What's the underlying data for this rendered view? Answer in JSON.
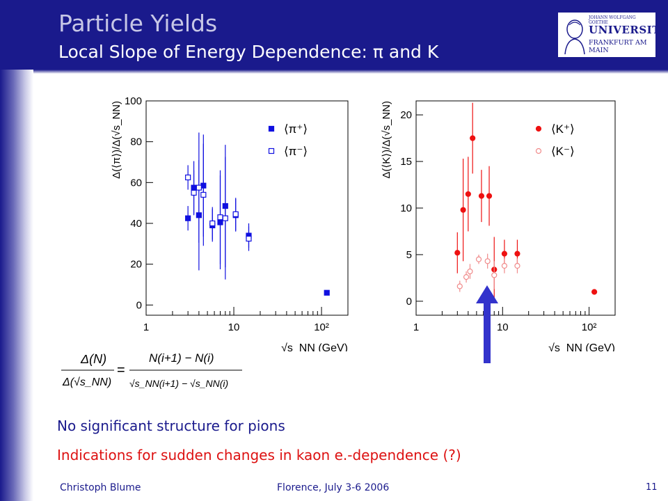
{
  "slide": {
    "title": "Particle Yields",
    "subtitle": "Local Slope of Energy Dependence: π and K",
    "logo": {
      "line1": "JOHANN WOLFGANG GOETHE",
      "line2": "UNIVERSITÄT",
      "line3": "FRANKFURT AM MAIN"
    },
    "equation": {
      "lhs_num": "Δ(N)",
      "lhs_den": "Δ(√s_NN)",
      "rhs_num": "N(i+1) − N(i)",
      "rhs_den": "√s_NN(i+1) − √s_NN(i)"
    },
    "message_pions": "No significant structure for pions",
    "message_kaons": "Indications for sudden changes in kaon e.-dependence (?)",
    "footer_left": "Christoph Blume",
    "footer_center": "Florence, July 3-6 2006",
    "footer_right": "11",
    "colors": {
      "header": "#1a1a8c",
      "pion": "#1010e0",
      "kaon": "#ee1111",
      "kaon_open": "#f08a8a",
      "arrow": "#3333cc"
    }
  },
  "chart_data": [
    {
      "type": "scatter",
      "xlabel": "√s_NN (GeV)",
      "ylabel": "Δ(⟨π⟩)/Δ(√s_NN)",
      "x_scale": "log",
      "xlim": [
        1,
        200
      ],
      "ylim": [
        -5,
        100
      ],
      "x_ticks": [
        "1",
        "10",
        "10²"
      ],
      "y_ticks": [
        "0",
        "20",
        "40",
        "60",
        "80",
        "100"
      ],
      "legend": "top-right",
      "series": [
        {
          "name": "⟨π⁺⟩",
          "marker": "filled-square",
          "points": [
            {
              "x": 3.0,
              "y": 42.5,
              "err": 6
            },
            {
              "x": 3.5,
              "y": 57.5,
              "err": 13
            },
            {
              "x": 4.0,
              "y": 44,
              "err": 27
            },
            {
              "x": 4.5,
              "y": 58.5,
              "err": 25
            },
            {
              "x": 5.7,
              "y": 39,
              "err": 8
            },
            {
              "x": 7.0,
              "y": 40.5,
              "err": 23
            },
            {
              "x": 8.0,
              "y": 48.5,
              "err": 30
            },
            {
              "x": 10.5,
              "y": 44,
              "err": 8
            },
            {
              "x": 14.8,
              "y": 34,
              "err": 6
            },
            {
              "x": 115,
              "y": 6,
              "err": 0
            }
          ]
        },
        {
          "name": "⟨π⁻⟩",
          "marker": "open-square",
          "points": [
            {
              "x": 3.0,
              "y": 62.5,
              "err": 6
            },
            {
              "x": 3.5,
              "y": 55,
              "err": 11
            },
            {
              "x": 4.0,
              "y": 57.5,
              "err": 27
            },
            {
              "x": 4.5,
              "y": 54,
              "err": 25
            },
            {
              "x": 5.7,
              "y": 40,
              "err": 8
            },
            {
              "x": 7.0,
              "y": 43,
              "err": 23
            },
            {
              "x": 8.0,
              "y": 42.5,
              "err": 30
            },
            {
              "x": 10.5,
              "y": 44.5,
              "err": 8
            },
            {
              "x": 14.8,
              "y": 32.5,
              "err": 6
            }
          ]
        }
      ]
    },
    {
      "type": "scatter",
      "xlabel": "√s_NN (GeV)",
      "ylabel": "Δ(⟨K⟩)/Δ(√s_NN)",
      "x_scale": "log",
      "xlim": [
        1,
        200
      ],
      "ylim": [
        -1.5,
        21.5
      ],
      "x_ticks": [
        "1",
        "10",
        "10²"
      ],
      "y_ticks": [
        "0",
        "5",
        "10",
        "15",
        "20"
      ],
      "legend": "top-right",
      "series": [
        {
          "name": "⟨K⁺⟩",
          "marker": "filled-circle",
          "points": [
            {
              "x": 3.0,
              "y": 5.2,
              "err": 2.2
            },
            {
              "x": 3.5,
              "y": 9.8,
              "err": 5.5
            },
            {
              "x": 4.0,
              "y": 11.5,
              "err": 4
            },
            {
              "x": 4.5,
              "y": 17.5,
              "err": 3.8
            },
            {
              "x": 5.7,
              "y": 11.3,
              "err": 2.8
            },
            {
              "x": 7.0,
              "y": 11.3,
              "err": 3.2
            },
            {
              "x": 8.0,
              "y": 3.4,
              "err": 3.5
            },
            {
              "x": 10.5,
              "y": 5.1,
              "err": 1.5
            },
            {
              "x": 14.8,
              "y": 5.1,
              "err": 1.5
            },
            {
              "x": 115,
              "y": 1.0,
              "err": 0
            }
          ]
        },
        {
          "name": "⟨K⁻⟩",
          "marker": "open-circle",
          "points": [
            {
              "x": 3.2,
              "y": 1.6,
              "err": 0.6
            },
            {
              "x": 3.8,
              "y": 2.6,
              "err": 0.6
            },
            {
              "x": 4.2,
              "y": 3.2,
              "err": 0.8
            },
            {
              "x": 5.3,
              "y": 4.5,
              "err": 0.5
            },
            {
              "x": 6.7,
              "y": 4.3,
              "err": 0.8
            },
            {
              "x": 8.0,
              "y": 2.8,
              "err": 1.5
            },
            {
              "x": 10.5,
              "y": 3.8,
              "err": 0.8
            },
            {
              "x": 14.8,
              "y": 3.8,
              "err": 0.8
            }
          ]
        }
      ]
    }
  ]
}
